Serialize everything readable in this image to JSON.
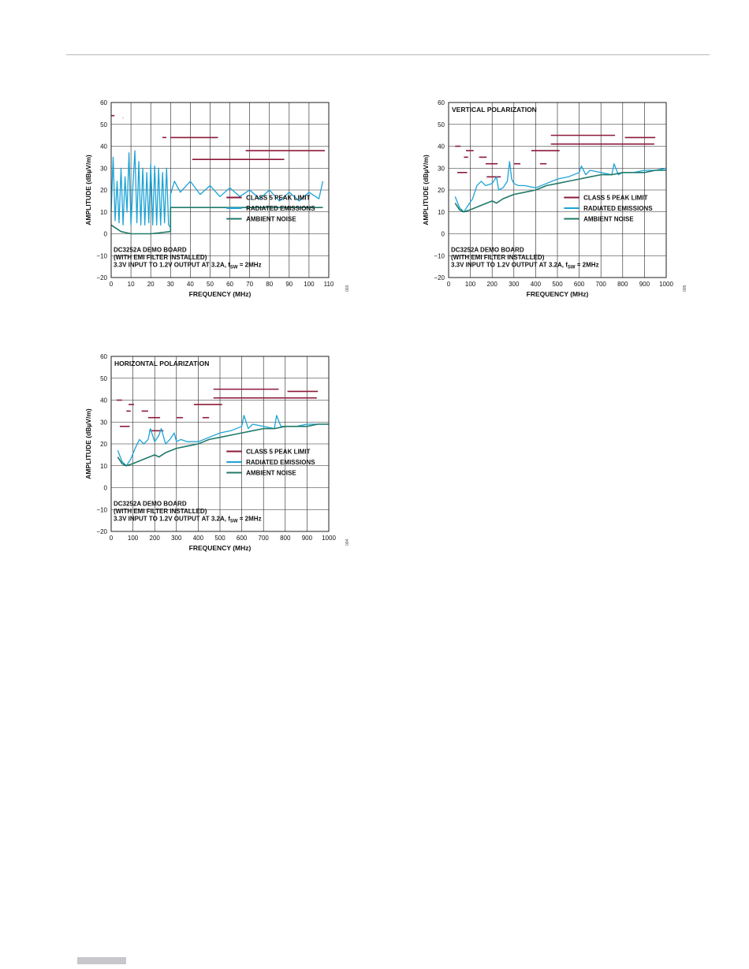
{
  "page": {
    "colors": {
      "rule": "#b9b9b9",
      "footer_bar": "#c7c7cc"
    }
  },
  "colors": {
    "limit": "#8c1a3a",
    "emissions": "#1ca3d6",
    "noise": "#1f7a6a",
    "grid": "#222222"
  },
  "chart_data": [
    {
      "type": "line",
      "title": "",
      "xlabel": "FREQUENCY (MHz)",
      "ylabel": "AMPLITUDE (dBµV/m)",
      "xlim": [
        0,
        110
      ],
      "ylim": [
        -20,
        60
      ],
      "xticks": [
        0,
        10,
        20,
        30,
        40,
        50,
        60,
        70,
        80,
        90,
        100,
        110
      ],
      "yticks": [
        -20,
        -10,
        0,
        10,
        20,
        30,
        40,
        50,
        60
      ],
      "grid": true,
      "legend_position": "right-middle",
      "legend": [
        "CLASS 5 PEAK LIMIT",
        "RADIATED EMISSIONS",
        "AMBIENT NOISE"
      ],
      "annotation": [
        "DC3252A DEMO BOARD",
        "(WITH EMI FILTER INSTALLED)",
        "3.3V INPUT TO 1.2V OUTPUT AT 3.2A, f",
        "SW",
        " = 2MHz"
      ],
      "figure_number": "003",
      "series": [
        {
          "name": "CLASS 5 PEAK LIMIT",
          "segments": [
            [
              0,
              1.7,
              54
            ],
            [
              5.9,
              6.1,
              53
            ],
            [
              25.9,
              27.9,
              44
            ],
            [
              30,
              54,
              44
            ],
            [
              41,
              87.5,
              34
            ],
            [
              68,
              108,
              38
            ]
          ]
        },
        {
          "name": "RADIATED EMISSIONS",
          "x": [
            0,
            1,
            2,
            3,
            4,
            5,
            6,
            7,
            8,
            9,
            10,
            11,
            12,
            13,
            14,
            15,
            16,
            17,
            18,
            19,
            20,
            21,
            22,
            23,
            24,
            25,
            26,
            27,
            28,
            29,
            30,
            30,
            32,
            35,
            40,
            45,
            50,
            55,
            60,
            65,
            70,
            75,
            80,
            85,
            90,
            95,
            100,
            105,
            107
          ],
          "y": [
            10,
            35,
            6,
            24,
            5,
            30,
            4,
            26,
            10,
            37,
            4,
            22,
            38,
            5,
            33,
            4,
            30,
            4,
            28,
            5,
            32,
            4,
            31,
            4,
            30,
            4,
            28,
            5,
            30,
            4,
            3,
            18,
            24,
            19,
            24,
            18,
            22,
            17,
            21,
            17,
            20,
            16,
            20,
            15,
            19,
            15,
            19,
            16,
            24
          ]
        },
        {
          "name": "AMBIENT NOISE",
          "x": [
            0,
            5,
            10,
            20,
            30,
            30,
            40,
            50,
            60,
            70,
            80,
            90,
            100,
            107
          ],
          "y": [
            4,
            1,
            0,
            0,
            1,
            12,
            12,
            12,
            12,
            12,
            12,
            12,
            12,
            12
          ]
        }
      ]
    },
    {
      "type": "line",
      "title": "VERTICAL POLARIZATION",
      "xlabel": "FREQUENCY (MHz)",
      "ylabel": "AMPLITUDE (dBµV/m)",
      "xlim": [
        0,
        1000
      ],
      "ylim": [
        -20,
        60
      ],
      "xticks": [
        0,
        100,
        200,
        300,
        400,
        500,
        600,
        700,
        800,
        900,
        1000
      ],
      "yticks": [
        -20,
        -10,
        0,
        10,
        20,
        30,
        40,
        50,
        60
      ],
      "grid": true,
      "legend_position": "right-middle",
      "legend": [
        "CLASS 5 PEAK LIMIT",
        "RADIATED EMISSIONS",
        "AMBIENT NOISE"
      ],
      "annotation": [
        "DC3252A DEMO BOARD",
        "(WITH EMI FILTER INSTALLED)",
        "3.3V INPUT TO 1.2V OUTPUT AT 3.2A, f",
        "SW",
        " = 2MHz"
      ],
      "figure_number": "005",
      "series": [
        {
          "name": "CLASS 5 PEAK LIMIT",
          "segments": [
            [
              30,
              55,
              40
            ],
            [
              40,
              85,
              28
            ],
            [
              70,
              90,
              35
            ],
            [
              80,
              115,
              38
            ],
            [
              140,
              175,
              35
            ],
            [
              170,
              225,
              32
            ],
            [
              175,
              240,
              26
            ],
            [
              300,
              330,
              32
            ],
            [
              380,
              510,
              38
            ],
            [
              420,
              450,
              32
            ],
            [
              470,
              765,
              45
            ],
            [
              470,
              945,
              41
            ],
            [
              810,
              950,
              44
            ]
          ]
        },
        {
          "name": "RADIATED EMISSIONS",
          "x": [
            30,
            50,
            70,
            90,
            110,
            130,
            150,
            170,
            200,
            220,
            230,
            250,
            270,
            280,
            290,
            300,
            320,
            350,
            400,
            450,
            500,
            550,
            600,
            610,
            630,
            650,
            700,
            750,
            760,
            780,
            800,
            850,
            900,
            950,
            1000
          ],
          "y": [
            17,
            12,
            10,
            13,
            16,
            22,
            24,
            22,
            23,
            26,
            20,
            21,
            24,
            33,
            25,
            23,
            22,
            22,
            21,
            23,
            25,
            26,
            28,
            31,
            27,
            29,
            28,
            27,
            32,
            27,
            28,
            28,
            29,
            29,
            30
          ]
        },
        {
          "name": "AMBIENT NOISE",
          "x": [
            30,
            50,
            70,
            100,
            150,
            200,
            220,
            250,
            300,
            350,
            400,
            450,
            500,
            550,
            600,
            650,
            700,
            750,
            800,
            850,
            900,
            950,
            1000
          ],
          "y": [
            14,
            11,
            10,
            11,
            13,
            15,
            14,
            16,
            18,
            19,
            20,
            22,
            23,
            24,
            25,
            26,
            27,
            27,
            28,
            28,
            28,
            29,
            29
          ]
        }
      ]
    },
    {
      "type": "line",
      "title": "HORIZONTAL POLARIZATION",
      "xlabel": "FREQUENCY (MHz)",
      "ylabel": "AMPLITUDE (dBµV/m)",
      "xlim": [
        0,
        1000
      ],
      "ylim": [
        -20,
        60
      ],
      "xticks": [
        0,
        100,
        200,
        300,
        400,
        500,
        600,
        700,
        800,
        900,
        1000
      ],
      "yticks": [
        -20,
        -10,
        0,
        10,
        20,
        30,
        40,
        50,
        60
      ],
      "grid": true,
      "legend_position": "right-middle",
      "legend": [
        "CLASS 5 PEAK LIMIT",
        "RADIATED EMISSIONS",
        "AMBIENT NOISE"
      ],
      "annotation": [
        "DC3252A DEMO BOARD",
        "(WITH EMI FILTER INSTALLED)",
        "3.3V INPUT TO 1.2V OUTPUT AT 3.2A, f",
        "SW",
        " = 2MHz"
      ],
      "figure_number": "004",
      "series": [
        {
          "name": "CLASS 5 PEAK LIMIT",
          "segments": [
            [
              25,
              50,
              40
            ],
            [
              40,
              85,
              28
            ],
            [
              70,
              90,
              35
            ],
            [
              80,
              105,
              38
            ],
            [
              140,
              170,
              35
            ],
            [
              170,
              225,
              32
            ],
            [
              175,
              240,
              26
            ],
            [
              300,
              330,
              32
            ],
            [
              380,
              510,
              38
            ],
            [
              420,
              450,
              32
            ],
            [
              470,
              770,
              45
            ],
            [
              470,
              945,
              41
            ],
            [
              810,
              950,
              44
            ]
          ]
        },
        {
          "name": "RADIATED EMISSIONS",
          "x": [
            30,
            50,
            70,
            90,
            110,
            130,
            150,
            170,
            180,
            200,
            220,
            230,
            250,
            270,
            290,
            300,
            320,
            350,
            400,
            450,
            500,
            550,
            600,
            610,
            630,
            650,
            700,
            750,
            760,
            780,
            800,
            850,
            900,
            950,
            1000
          ],
          "y": [
            17,
            12,
            10,
            13,
            18,
            22,
            20,
            22,
            27,
            21,
            24,
            27,
            20,
            22,
            25,
            21,
            22,
            21,
            21,
            23,
            25,
            26,
            28,
            33,
            27,
            29,
            28,
            27,
            33,
            28,
            28,
            28,
            29,
            29,
            29
          ]
        },
        {
          "name": "AMBIENT NOISE",
          "x": [
            30,
            50,
            70,
            100,
            150,
            200,
            220,
            250,
            300,
            350,
            400,
            450,
            500,
            550,
            600,
            650,
            700,
            750,
            800,
            850,
            900,
            950,
            1000
          ],
          "y": [
            14,
            11,
            10,
            11,
            13,
            15,
            14,
            16,
            18,
            19,
            20,
            22,
            23,
            24,
            25,
            26,
            27,
            27,
            28,
            28,
            28,
            29,
            29
          ]
        }
      ]
    }
  ]
}
